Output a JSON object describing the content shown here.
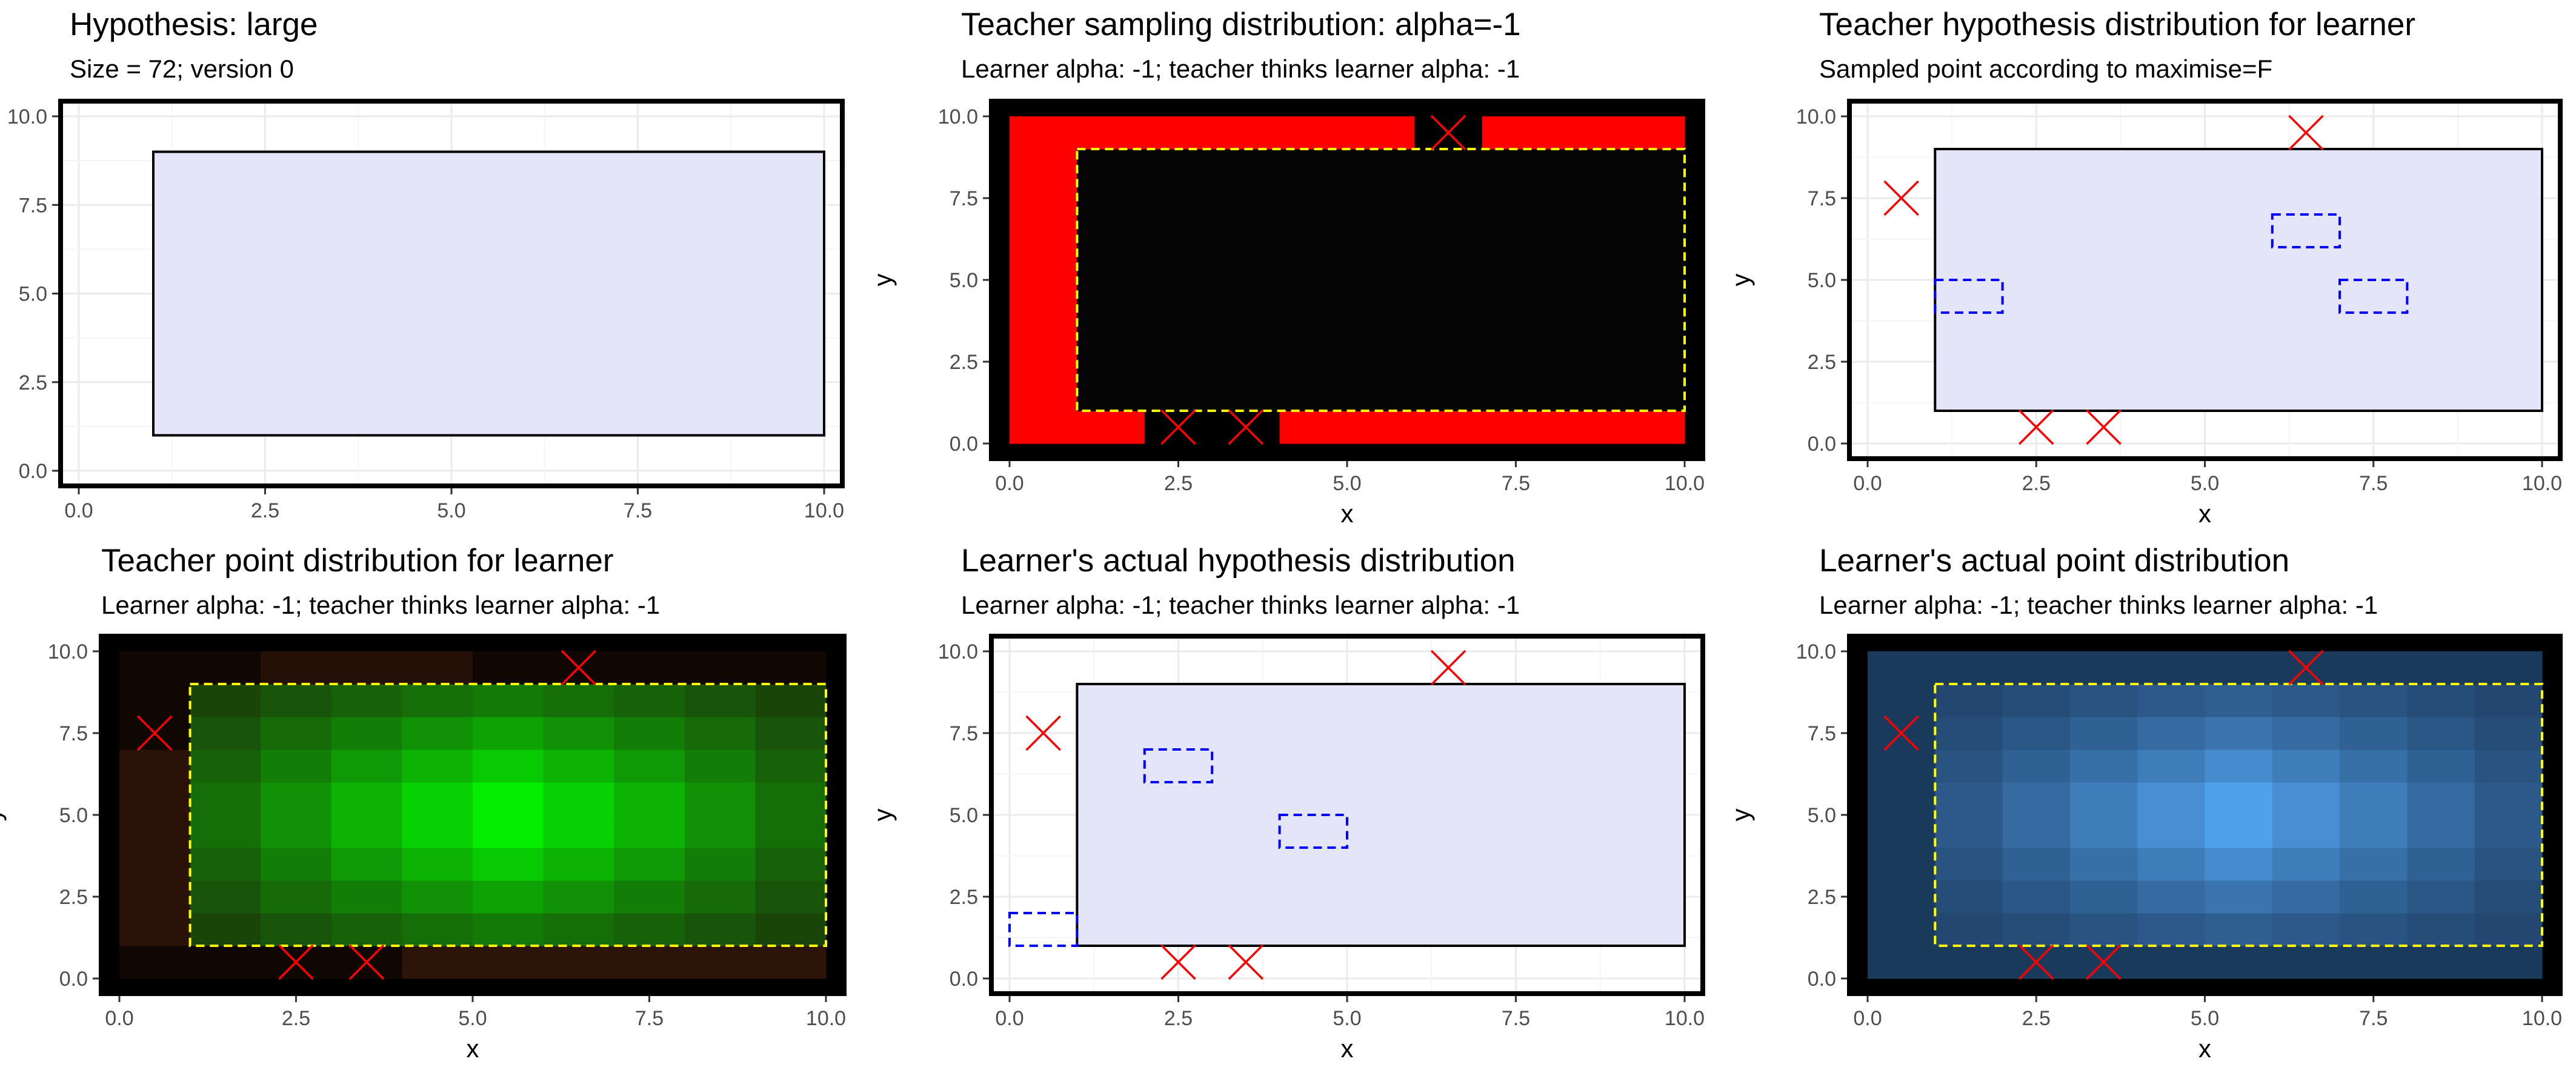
{
  "colors": {
    "hyp_fill": "#e3e3fa",
    "border": "#000000",
    "yellow": "#ffff00",
    "red": "#ff0000",
    "blue": "#0000ff",
    "grid_major": "#ebebeb",
    "grid_minor": "#f5f5f5"
  },
  "chart_data": [
    {
      "type": "heatmap",
      "title": "Hypothesis: large",
      "subtitle": "Size = 72; version 0",
      "xlabel": "",
      "ylabel": "",
      "xlim": [
        0,
        10
      ],
      "ylim": [
        0,
        10
      ],
      "xticks": [
        "0.0",
        "2.5",
        "5.0",
        "7.5",
        "10.0"
      ],
      "yticks": [
        "0.0",
        "2.5",
        "5.0",
        "7.5",
        "10.0"
      ],
      "background": "white",
      "grid": true,
      "hypothesis_rect": {
        "x0": 1,
        "y0": 1,
        "x1": 10,
        "y1": 9,
        "style": "solid"
      },
      "points": [],
      "dashed_rects": []
    },
    {
      "type": "heatmap",
      "title": "Teacher sampling distribution: alpha=-1",
      "subtitle": "Learner alpha: -1; teacher thinks learner alpha: -1",
      "xlabel": "x",
      "ylabel": "y",
      "xlim": [
        0,
        10
      ],
      "ylim": [
        0,
        10
      ],
      "xticks": [
        "0.0",
        "2.5",
        "5.0",
        "7.5",
        "10.0"
      ],
      "yticks": [
        "0.0",
        "2.5",
        "5.0",
        "7.5",
        "10.0"
      ],
      "background": "black",
      "grid": false,
      "cells_mode": "red_outside",
      "hypothesis_rect": {
        "x0": 1,
        "y0": 1,
        "x1": 10,
        "y1": 9,
        "style": "dashed"
      },
      "points": [
        [
          6.5,
          9.5
        ],
        [
          2.5,
          0.5
        ],
        [
          3.5,
          0.5
        ]
      ],
      "dashed_rects": []
    },
    {
      "type": "heatmap",
      "title": "Teacher hypothesis distribution for learner",
      "subtitle": "Sampled point according to maximise=F",
      "xlabel": "x",
      "ylabel": "y",
      "xlim": [
        0,
        10
      ],
      "ylim": [
        0,
        10
      ],
      "xticks": [
        "0.0",
        "2.5",
        "5.0",
        "7.5",
        "10.0"
      ],
      "yticks": [
        "0.0",
        "2.5",
        "5.0",
        "7.5",
        "10.0"
      ],
      "background": "white",
      "grid": true,
      "hypothesis_rect": {
        "x0": 1,
        "y0": 1,
        "x1": 10,
        "y1": 9,
        "style": "solid"
      },
      "points": [
        [
          0.5,
          7.5
        ],
        [
          6.5,
          9.5
        ],
        [
          2.5,
          0.5
        ],
        [
          3.5,
          0.5
        ]
      ],
      "dashed_rects": [
        [
          1,
          4,
          2,
          5
        ],
        [
          6,
          6,
          7,
          7
        ],
        [
          7,
          4,
          8,
          5
        ]
      ]
    },
    {
      "type": "heatmap",
      "title": "Teacher point distribution for learner",
      "subtitle": "Learner alpha: -1; teacher thinks learner alpha: -1",
      "xlabel": "x",
      "ylabel": "y",
      "xlim": [
        0,
        10
      ],
      "ylim": [
        0,
        10
      ],
      "xticks": [
        "0.0",
        "2.5",
        "5.0",
        "7.5",
        "10.0"
      ],
      "yticks": [
        "0.0",
        "2.5",
        "5.0",
        "7.5",
        "10.0"
      ],
      "background": "black",
      "grid": false,
      "cells_mode": "green",
      "hypothesis_rect": {
        "x0": 1,
        "y0": 1,
        "x1": 10,
        "y1": 9,
        "style": "dashed"
      },
      "points": [
        [
          0.5,
          7.5
        ],
        [
          6.5,
          9.5
        ],
        [
          2.5,
          0.5
        ],
        [
          3.5,
          0.5
        ]
      ],
      "dashed_rects": []
    },
    {
      "type": "heatmap",
      "title": "Learner's actual hypothesis distribution",
      "subtitle": "Learner alpha: -1; teacher thinks learner alpha: -1",
      "xlabel": "x",
      "ylabel": "y",
      "xlim": [
        0,
        10
      ],
      "ylim": [
        0,
        10
      ],
      "xticks": [
        "0.0",
        "2.5",
        "5.0",
        "7.5",
        "10.0"
      ],
      "yticks": [
        "0.0",
        "2.5",
        "5.0",
        "7.5",
        "10.0"
      ],
      "background": "white",
      "grid": true,
      "hypothesis_rect": {
        "x0": 1,
        "y0": 1,
        "x1": 10,
        "y1": 9,
        "style": "solid"
      },
      "points": [
        [
          0.5,
          7.5
        ],
        [
          6.5,
          9.5
        ],
        [
          2.5,
          0.5
        ],
        [
          3.5,
          0.5
        ]
      ],
      "dashed_rects": [
        [
          0,
          1,
          1,
          2
        ],
        [
          2,
          6,
          3,
          7
        ],
        [
          4,
          4,
          5,
          5
        ]
      ]
    },
    {
      "type": "heatmap",
      "title": "Learner's actual point distribution",
      "subtitle": "Learner alpha: -1; teacher thinks learner alpha: -1",
      "xlabel": "x",
      "ylabel": "y",
      "xlim": [
        0,
        10
      ],
      "ylim": [
        0,
        10
      ],
      "xticks": [
        "0.0",
        "2.5",
        "5.0",
        "7.5",
        "10.0"
      ],
      "yticks": [
        "0.0",
        "2.5",
        "5.0",
        "7.5",
        "10.0"
      ],
      "background": "black",
      "grid": false,
      "cells_mode": "blue",
      "hypothesis_rect": {
        "x0": 1,
        "y0": 1,
        "x1": 10,
        "y1": 9,
        "style": "dashed"
      },
      "points": [
        [
          0.5,
          7.5
        ],
        [
          6.5,
          9.5
        ],
        [
          2.5,
          0.5
        ],
        [
          3.5,
          0.5
        ]
      ],
      "dashed_rects": []
    }
  ]
}
